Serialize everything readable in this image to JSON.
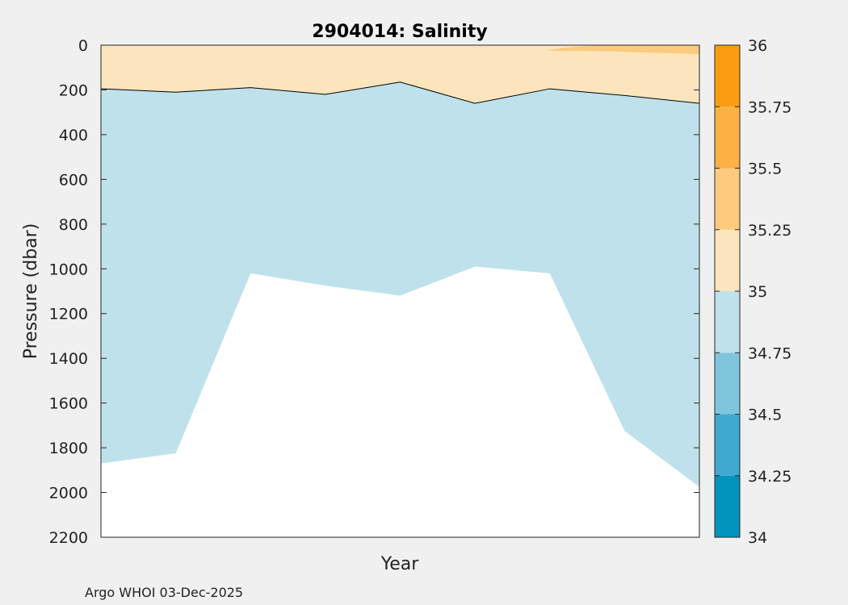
{
  "chart_data": {
    "type": "heatmap",
    "title": "2904014:  Salinity",
    "xlabel": "Year",
    "ylabel": "Pressure (dbar)",
    "y_axis": {
      "min": 0,
      "max": 2200,
      "reversed": true,
      "ticks": [
        0,
        200,
        400,
        600,
        800,
        1000,
        1200,
        1400,
        1600,
        1800,
        2000,
        2200
      ]
    },
    "x_axis": {
      "tick_labels": []
    },
    "profiles": {
      "x": [
        0,
        1,
        2,
        3,
        4,
        5,
        6,
        7,
        8
      ],
      "max_depth": [
        1870,
        1825,
        1020,
        1075,
        1120,
        990,
        1020,
        1725,
        1975
      ],
      "isohaline_35": [
        195,
        210,
        190,
        220,
        165,
        260,
        195,
        225,
        260
      ],
      "isohaline_35_25_top": [
        null,
        null,
        null,
        null,
        null,
        null,
        0,
        0,
        0
      ]
    },
    "colorbar": {
      "levels": [
        34,
        34.25,
        34.5,
        34.75,
        35,
        35.25,
        35.5,
        35.75,
        36
      ],
      "colors": [
        "#0492bf",
        "#40a9cf",
        "#80c5de",
        "#bfe1ec",
        "#fce5bd",
        "#fccb7e",
        "#fcb142",
        "#fc9c13"
      ]
    },
    "footer": "Argo WHOI 03-Dec-2025"
  }
}
